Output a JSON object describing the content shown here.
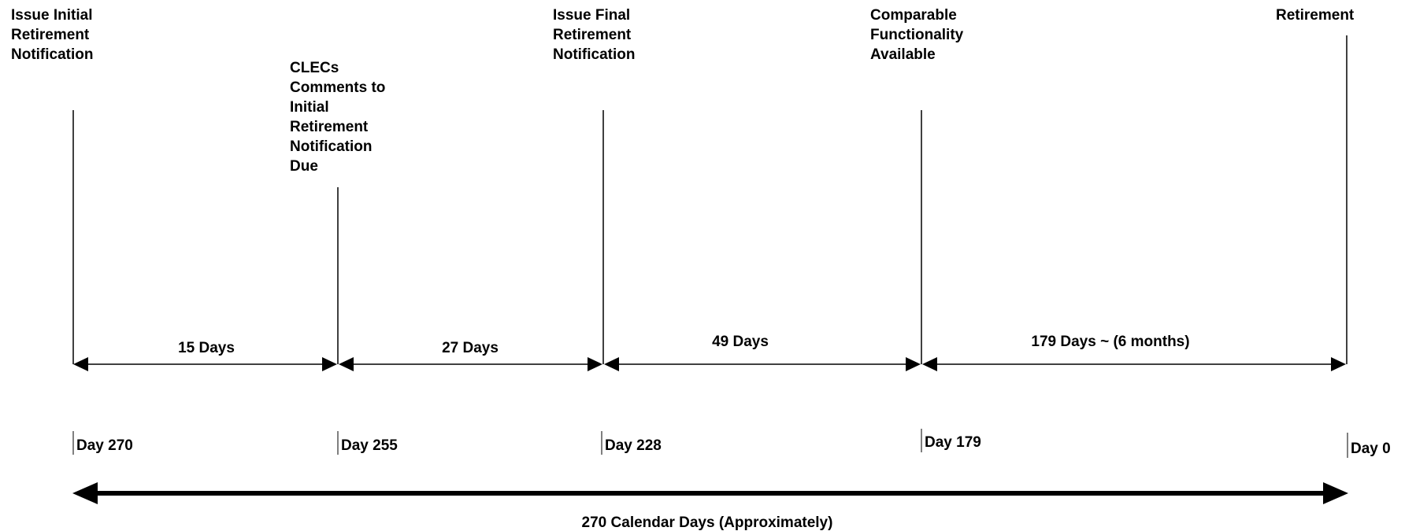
{
  "milestones": [
    {
      "label_lines": [
        "Issue Initial",
        "Retirement",
        "Notification"
      ],
      "day": "Day 270"
    },
    {
      "label_lines": [
        "CLECs",
        "Comments to",
        "Initial",
        "Retirement",
        "Notification",
        "Due"
      ],
      "day": "Day 255"
    },
    {
      "label_lines": [
        "Issue Final",
        "Retirement",
        "Notification"
      ],
      "day": "Day 228"
    },
    {
      "label_lines": [
        "Comparable",
        "Functionality",
        "Available"
      ],
      "day": "Day 179"
    },
    {
      "label_lines": [
        "Retirement"
      ],
      "day": "Day 0"
    }
  ],
  "durations": [
    "15 Days",
    "27 Days",
    "49 Days",
    "179 Days ~ (6 months)"
  ],
  "total_label": "270 Calendar Days (Approximately)"
}
